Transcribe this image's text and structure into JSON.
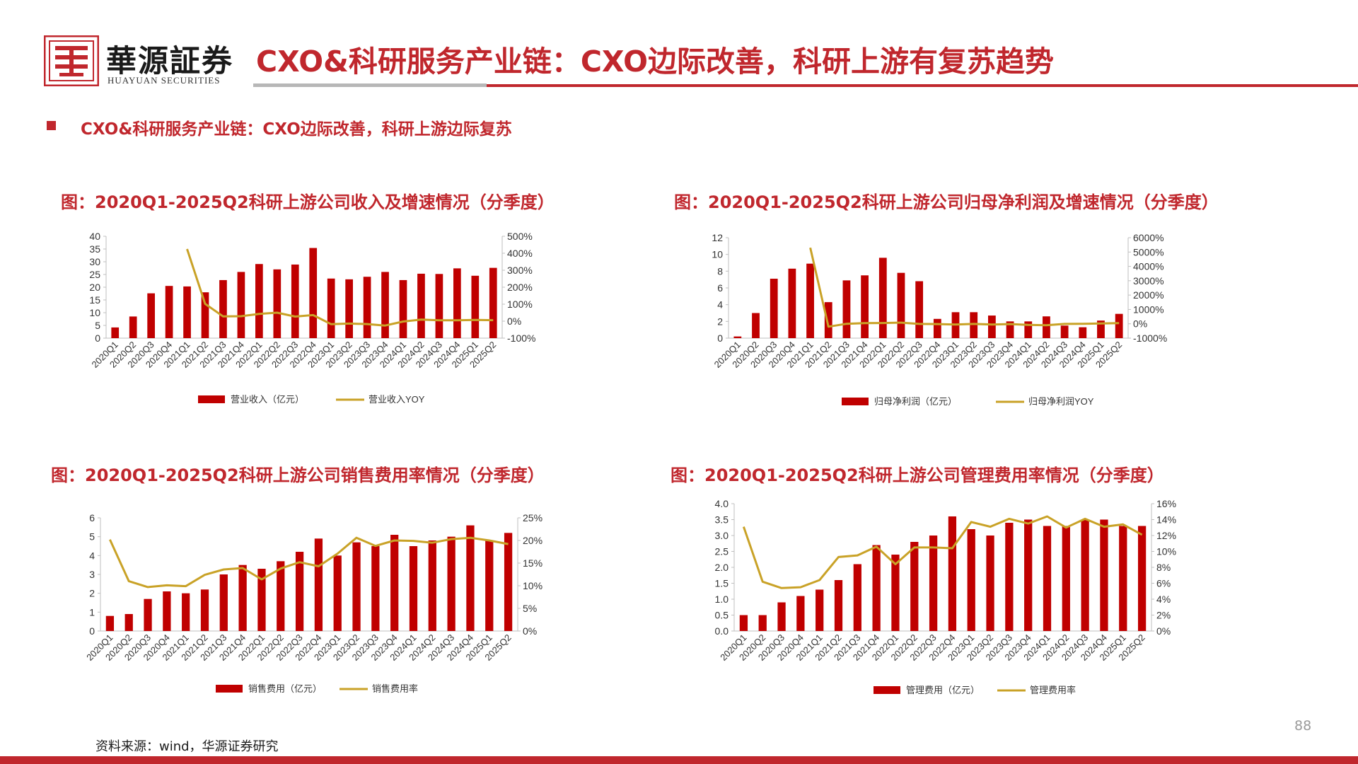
{
  "header": {
    "brand_cn": "華源証券",
    "brand_en": "HUAYUAN SECURITIES",
    "title": "CXO&科研服务产业链：CXO边际改善，科研上游有复苏趋势"
  },
  "section_title": "CXO&科研服务产业链：CXO边际改善，科研上游边际复苏",
  "source": "资料来源：wind，华源证券研究",
  "page_number": "88",
  "colors": {
    "accent": "#c0272d",
    "bar": "#c00000",
    "line": "#c9a227"
  },
  "chart_data": [
    {
      "type": "bar+line",
      "title": "图：2020Q1-2025Q2科研上游公司收入及增速情况（分季度）",
      "categories": [
        "2020Q1",
        "2020Q2",
        "2020Q3",
        "2020Q4",
        "2021Q1",
        "2021Q2",
        "2021Q3",
        "2021Q4",
        "2022Q1",
        "2022Q2",
        "2022Q3",
        "2022Q4",
        "2023Q1",
        "2023Q2",
        "2023Q3",
        "2023Q4",
        "2024Q1",
        "2024Q2",
        "2024Q3",
        "2024Q4",
        "2025Q1",
        "2025Q2"
      ],
      "y_ticks": [
        "0",
        "5",
        "10",
        "15",
        "20",
        "25",
        "30",
        "35",
        "40"
      ],
      "y2_ticks": [
        "-100%",
        "0%",
        "100%",
        "200%",
        "300%",
        "400%",
        "500%"
      ],
      "ylim": [
        0,
        40
      ],
      "y2lim": [
        -100,
        500
      ],
      "series": [
        {
          "name": "营业收入（亿元）",
          "kind": "bar",
          "values": [
            4.2,
            8.5,
            17.6,
            20.5,
            20.3,
            18.0,
            22.8,
            26.0,
            29.1,
            27.0,
            28.9,
            35.4,
            23.4,
            23.1,
            24.1,
            26.0,
            22.8,
            25.3,
            25.2,
            27.4,
            24.5,
            27.6
          ]
        },
        {
          "name": "营业收入YOY",
          "kind": "line",
          "line_start": 4,
          "values": [
            null,
            null,
            null,
            null,
            425,
            102,
            28,
            29,
            43,
            50,
            27,
            36,
            -18,
            -14,
            -17,
            -26,
            -2,
            9,
            5,
            5,
            7,
            6
          ]
        }
      ]
    },
    {
      "type": "bar+line",
      "title": "图：2020Q1-2025Q2科研上游公司归母净利润及增速情况（分季度）",
      "categories": [
        "2020Q1",
        "2020Q2",
        "2020Q3",
        "2020Q4",
        "2021Q1",
        "2021Q2",
        "2021Q3",
        "2021Q4",
        "2022Q1",
        "2022Q2",
        "2022Q3",
        "2022Q4",
        "2023Q1",
        "2023Q2",
        "2023Q3",
        "2023Q4",
        "2024Q1",
        "2024Q2",
        "2024Q3",
        "2024Q4",
        "2025Q1",
        "2025Q2"
      ],
      "y_ticks": [
        "0",
        "2",
        "4",
        "6",
        "8",
        "10",
        "12"
      ],
      "y2_ticks": [
        "-1000%",
        "0%",
        "1000%",
        "2000%",
        "3000%",
        "4000%",
        "5000%",
        "6000%"
      ],
      "ylim": [
        0,
        12
      ],
      "y2lim": [
        -1000,
        6000
      ],
      "series": [
        {
          "name": "归母净利润（亿元）",
          "kind": "bar",
          "values": [
            0.2,
            3.0,
            7.1,
            8.3,
            8.9,
            4.3,
            6.9,
            7.5,
            9.6,
            7.8,
            6.8,
            2.3,
            3.1,
            3.1,
            2.7,
            2.0,
            2.0,
            2.6,
            1.5,
            1.3,
            2.1,
            2.9
          ]
        },
        {
          "name": "归母净利润YOY",
          "kind": "line",
          "line_start": 4,
          "values": [
            null,
            null,
            null,
            null,
            5300,
            -200,
            0,
            50,
            55,
            80,
            -10,
            -20,
            -50,
            -10,
            -50,
            -20,
            -80,
            -100,
            -10,
            0,
            20,
            50
          ]
        }
      ]
    },
    {
      "type": "bar+line",
      "title": "图：2020Q1-2025Q2科研上游公司销售费用率情况（分季度）",
      "categories": [
        "2020Q1",
        "2020Q2",
        "2020Q3",
        "2020Q4",
        "2021Q1",
        "2021Q2",
        "2021Q3",
        "2021Q4",
        "2022Q1",
        "2022Q2",
        "2022Q3",
        "2022Q4",
        "2023Q1",
        "2023Q2",
        "2023Q3",
        "2023Q4",
        "2024Q1",
        "2024Q2",
        "2024Q3",
        "2024Q4",
        "2025Q1",
        "2025Q2"
      ],
      "y_ticks": [
        "0",
        "1",
        "2",
        "3",
        "4",
        "5",
        "6"
      ],
      "y2_ticks": [
        "0%",
        "5%",
        "10%",
        "15%",
        "20%",
        "25%"
      ],
      "ylim": [
        0,
        6
      ],
      "y2lim": [
        0,
        25
      ],
      "series": [
        {
          "name": "销售费用（亿元）",
          "kind": "bar",
          "values": [
            0.8,
            0.9,
            1.7,
            2.1,
            2.0,
            2.2,
            3.0,
            3.5,
            3.3,
            3.7,
            4.2,
            4.9,
            4.0,
            4.7,
            4.5,
            5.1,
            4.5,
            4.8,
            5.0,
            5.6,
            4.8,
            5.2
          ]
        },
        {
          "name": "销售费用率",
          "kind": "line",
          "line_start": 0,
          "values": [
            20.2,
            11.0,
            9.7,
            10.1,
            9.9,
            12.4,
            13.6,
            13.9,
            11.4,
            13.8,
            15.2,
            14.3,
            17.1,
            20.6,
            18.8,
            20.0,
            19.9,
            19.5,
            20.3,
            20.6,
            20.0,
            19.2
          ]
        }
      ]
    },
    {
      "type": "bar+line",
      "title": "图：2020Q1-2025Q2科研上游公司管理费用率情况（分季度）",
      "categories": [
        "2020Q1",
        "2020Q2",
        "2020Q3",
        "2020Q4",
        "2021Q1",
        "2021Q2",
        "2021Q3",
        "2021Q4",
        "2022Q1",
        "2022Q2",
        "2022Q3",
        "2022Q4",
        "2023Q1",
        "2023Q2",
        "2023Q3",
        "2023Q4",
        "2024Q1",
        "2024Q2",
        "2024Q3",
        "2024Q4",
        "2025Q1",
        "2025Q2"
      ],
      "y_ticks": [
        "0.0",
        "0.5",
        "1.0",
        "1.5",
        "2.0",
        "2.5",
        "3.0",
        "3.5",
        "4.0"
      ],
      "y2_ticks": [
        "0%",
        "2%",
        "4%",
        "6%",
        "8%",
        "10%",
        "12%",
        "14%",
        "16%"
      ],
      "ylim": [
        0,
        4
      ],
      "y2lim": [
        0,
        16
      ],
      "series": [
        {
          "name": "管理费用（亿元）",
          "kind": "bar",
          "values": [
            0.5,
            0.5,
            0.9,
            1.1,
            1.3,
            1.6,
            2.1,
            2.7,
            2.4,
            2.8,
            3.0,
            3.6,
            3.2,
            3.0,
            3.4,
            3.5,
            3.3,
            3.3,
            3.5,
            3.5,
            3.3,
            3.3
          ]
        },
        {
          "name": "管理费用率",
          "kind": "line",
          "line_start": 0,
          "values": [
            13.1,
            6.2,
            5.4,
            5.5,
            6.4,
            9.3,
            9.5,
            10.6,
            8.4,
            10.5,
            10.5,
            10.4,
            13.7,
            13.1,
            14.1,
            13.5,
            14.4,
            13.0,
            14.1,
            13.1,
            13.4,
            12.1
          ]
        }
      ]
    }
  ]
}
